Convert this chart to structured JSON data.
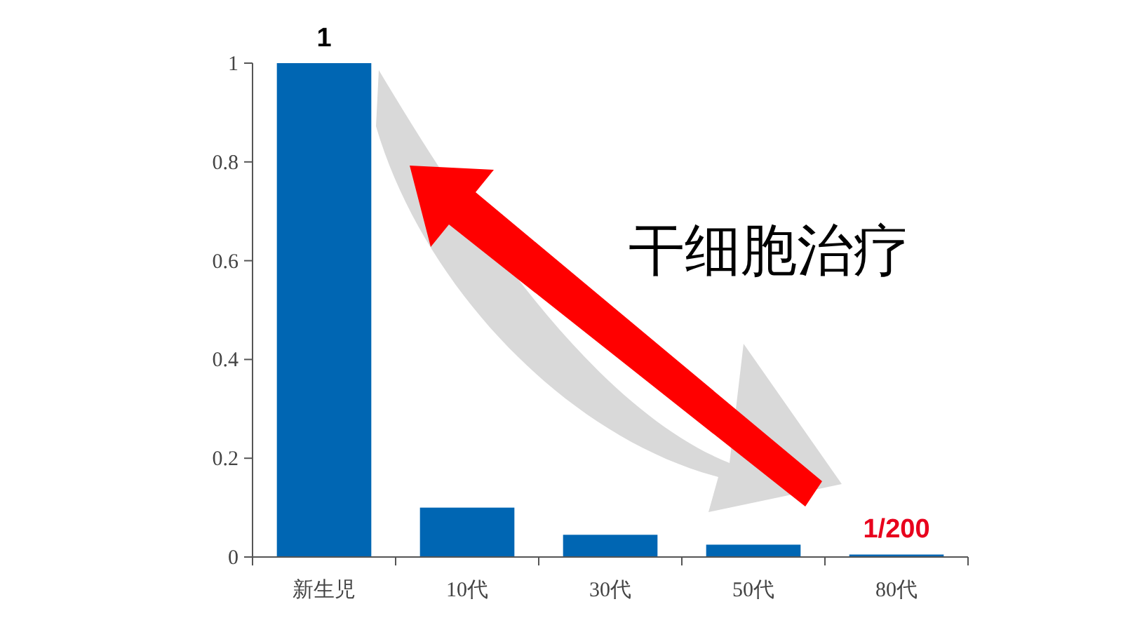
{
  "chart_data": {
    "type": "bar",
    "categories": [
      "新生児",
      "10代",
      "30代",
      "50代",
      "80代"
    ],
    "values": [
      1,
      0.1,
      0.045,
      0.025,
      0.005
    ],
    "value_labels": [
      "1",
      null,
      null,
      null,
      "1/200"
    ],
    "colors": [
      "#0066b3",
      "#0066b3",
      "#0066b3",
      "#0066b3",
      "#0066b3"
    ],
    "ylim": [
      0,
      1
    ],
    "yticks": [
      0,
      0.2,
      0.4,
      0.6,
      0.8,
      1
    ],
    "annotations": [
      "干细胞治疗"
    ],
    "grid": false
  }
}
